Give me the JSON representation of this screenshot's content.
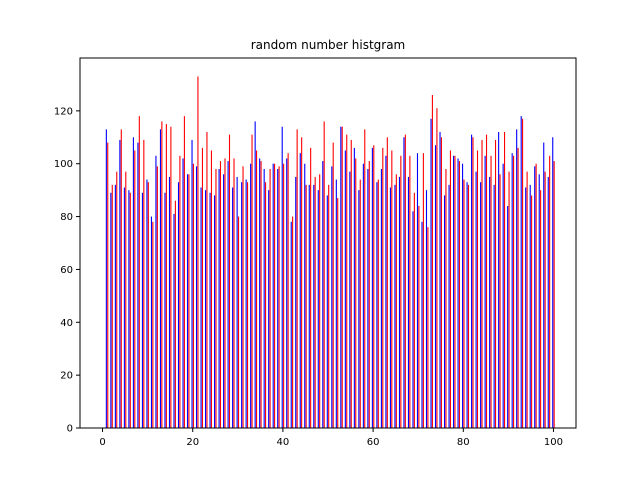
{
  "chart_data": {
    "type": "bar",
    "title": "random number histgram",
    "xlabel": "",
    "ylabel": "",
    "xlim": [
      -5,
      105
    ],
    "ylim": [
      0,
      140
    ],
    "xticks": [
      0,
      20,
      40,
      60,
      80,
      100
    ],
    "yticks": [
      0,
      20,
      40,
      60,
      80,
      100,
      120
    ],
    "grid": false,
    "legend": "none",
    "x": [
      1,
      2,
      3,
      4,
      5,
      6,
      7,
      8,
      9,
      10,
      11,
      12,
      13,
      14,
      15,
      16,
      17,
      18,
      19,
      20,
      21,
      22,
      23,
      24,
      25,
      26,
      27,
      28,
      29,
      30,
      31,
      32,
      33,
      34,
      35,
      36,
      37,
      38,
      39,
      40,
      41,
      42,
      43,
      44,
      45,
      46,
      47,
      48,
      49,
      50,
      51,
      52,
      53,
      54,
      55,
      56,
      57,
      58,
      59,
      60,
      61,
      62,
      63,
      64,
      65,
      66,
      67,
      68,
      69,
      70,
      71,
      72,
      73,
      74,
      75,
      76,
      77,
      78,
      79,
      80,
      81,
      82,
      83,
      84,
      85,
      86,
      87,
      88,
      89,
      90,
      91,
      92,
      93,
      94,
      95,
      96,
      97,
      98,
      99,
      100
    ],
    "series": [
      {
        "color": "#0000ff",
        "values": [
          113,
          89,
          92,
          109,
          91,
          90,
          110,
          108,
          89,
          94,
          80,
          103,
          113,
          89,
          95,
          81,
          93,
          102,
          96,
          109,
          99,
          91,
          90,
          89,
          88,
          98,
          96,
          101,
          91,
          95,
          93,
          94,
          100,
          116,
          102,
          98,
          90,
          100,
          98,
          114,
          102,
          78,
          95,
          104,
          100,
          92,
          92,
          90,
          101,
          88,
          99,
          94,
          114,
          105,
          97,
          106,
          90,
          100,
          98,
          106,
          93,
          98,
          103,
          91,
          92,
          95,
          110,
          95,
          82,
          104,
          78,
          90,
          117,
          107,
          112,
          88,
          92,
          103,
          102,
          100,
          93,
          111,
          97,
          93,
          103,
          95,
          92,
          112,
          100,
          84,
          104,
          113,
          118,
          91,
          92,
          99,
          96,
          108,
          95,
          110
        ]
      },
      {
        "color": "#ff0000",
        "values": [
          108,
          92,
          97,
          113,
          97,
          89,
          105,
          118,
          109,
          93,
          78,
          99,
          116,
          115,
          114,
          86,
          103,
          118,
          96,
          100,
          133,
          106,
          112,
          105,
          98,
          101,
          102,
          111,
          102,
          80,
          99,
          93,
          111,
          105,
          101,
          93,
          98,
          100,
          99,
          100,
          104,
          80,
          113,
          110,
          92,
          106,
          95,
          96,
          116,
          92,
          108,
          87,
          114,
          111,
          109,
          102,
          94,
          113,
          101,
          107,
          94,
          106,
          110,
          105,
          96,
          103,
          111,
          103,
          89,
          84,
          104,
          76,
          126,
          121,
          110,
          98,
          105,
          103,
          101,
          94,
          92,
          110,
          105,
          109,
          111,
          103,
          109,
          96,
          112,
          97,
          103,
          106,
          117,
          97,
          88,
          100,
          90,
          97,
          103,
          101
        ]
      }
    ]
  }
}
